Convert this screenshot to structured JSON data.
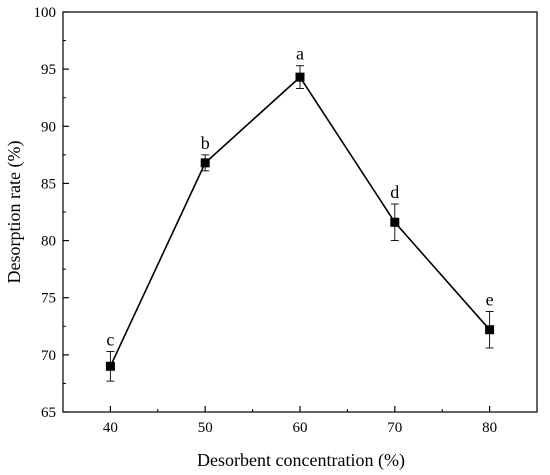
{
  "chart_data": {
    "type": "line",
    "title": "",
    "xlabel": "Desorbent concentration (%)",
    "ylabel": "Desorption rate (%)",
    "x": [
      40,
      50,
      60,
      70,
      80
    ],
    "xlim": [
      35,
      85
    ],
    "ylim": [
      65,
      100
    ],
    "xticks": [
      40,
      50,
      60,
      70,
      80
    ],
    "yticks": [
      65,
      70,
      75,
      80,
      85,
      90,
      95,
      100
    ],
    "series": [
      {
        "values": [
          69.0,
          86.8,
          94.3,
          81.6,
          72.2
        ],
        "errors": [
          1.3,
          0.7,
          1.0,
          1.6,
          1.6
        ],
        "letters": [
          "c",
          "b",
          "a",
          "d",
          "e"
        ],
        "marker": "square",
        "color": "#000000"
      }
    ],
    "grid": false,
    "legend": "none"
  }
}
